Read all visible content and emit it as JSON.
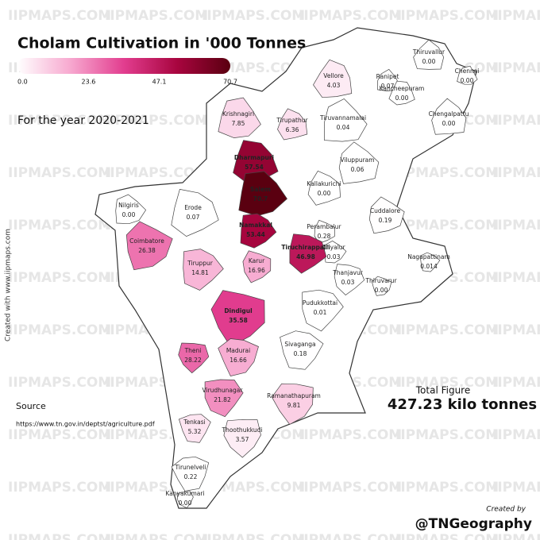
{
  "chart_data": {
    "type": "choropleth",
    "title": "Cholam Cultivation in '000 Tonnes",
    "subtitle": "For the year 2020-2021",
    "categories": [
      "Thiruvallur",
      "Chennai",
      "Vellore",
      "Ranipet",
      "Kancheepuram",
      "Chengalpattu",
      "Krishnagiri",
      "Tirupathur",
      "Tiruvannamalai",
      "Dharmapuri",
      "Viluppuram",
      "Salem",
      "Kallakurichi",
      "Nilgiris",
      "Erode",
      "Cuddalore",
      "Namakkal",
      "Perambalur",
      "Ariyalur",
      "Tiruchirappalli",
      "Coimbatore",
      "Tiruppur",
      "Karur",
      "Nagapattinam",
      "Thanjavur",
      "Thiruvarur",
      "Pudukkottai",
      "Dindigul",
      "Sivaganga",
      "Theni",
      "Madurai",
      "Virudhunagar",
      "Ramanathapuram",
      "Tenkasi",
      "Thoothukkudi",
      "Tirunelveli",
      "Kanyakumari"
    ],
    "values": [
      0,
      0,
      4.03,
      0.07,
      0,
      0,
      7.85,
      6.36,
      0.04,
      57.54,
      0.06,
      70.7,
      0,
      0,
      0.07,
      0.19,
      53.44,
      0.28,
      0.03,
      46.98,
      26.38,
      14.81,
      16.96,
      0.014,
      0.03,
      0,
      0.01,
      35.58,
      0.18,
      28.22,
      16.66,
      21.82,
      9.81,
      5.32,
      3.57,
      0.22,
      0
    ],
    "value_labels": [
      "0.00",
      "0.00",
      "4.03",
      "0.07",
      "0.00",
      "0.00",
      "7.85",
      "6.36",
      "0.04",
      "57.54",
      "0.06",
      "70.7",
      "0.00",
      "0.00",
      "0.07",
      "0.19",
      "53.44",
      "0.28",
      "0.03",
      "46.98",
      "26.38",
      "14.81",
      "16.96",
      "0.014",
      "0.03",
      "0.00",
      "0.01",
      "35.58",
      "0.18",
      "28.22",
      "16.66",
      "21.82",
      "9.81",
      "5.32",
      "3.57",
      "0.22",
      "0.00"
    ],
    "colorlim": [
      0,
      70.7
    ],
    "colorticks": [
      {
        "value": 0,
        "label": "0.0"
      },
      23.6,
      47.1,
      70.7
    ],
    "color_scale": [
      "#ffffff",
      "#f7a8cf",
      "#e23d8f",
      "#a8053f",
      "#5a0010"
    ],
    "total_label": "Total Figure",
    "total_value": "427.23 kilo tonnes",
    "source_label": "Source",
    "source_url": "https://www.tn.gov.in/deptst/agriculture.pdf",
    "side_credit": "Created with www.iipmaps.com",
    "credit_label": "Created by",
    "credit_handle": "@TNGeography",
    "watermark": "IIPMAPS.COM"
  }
}
